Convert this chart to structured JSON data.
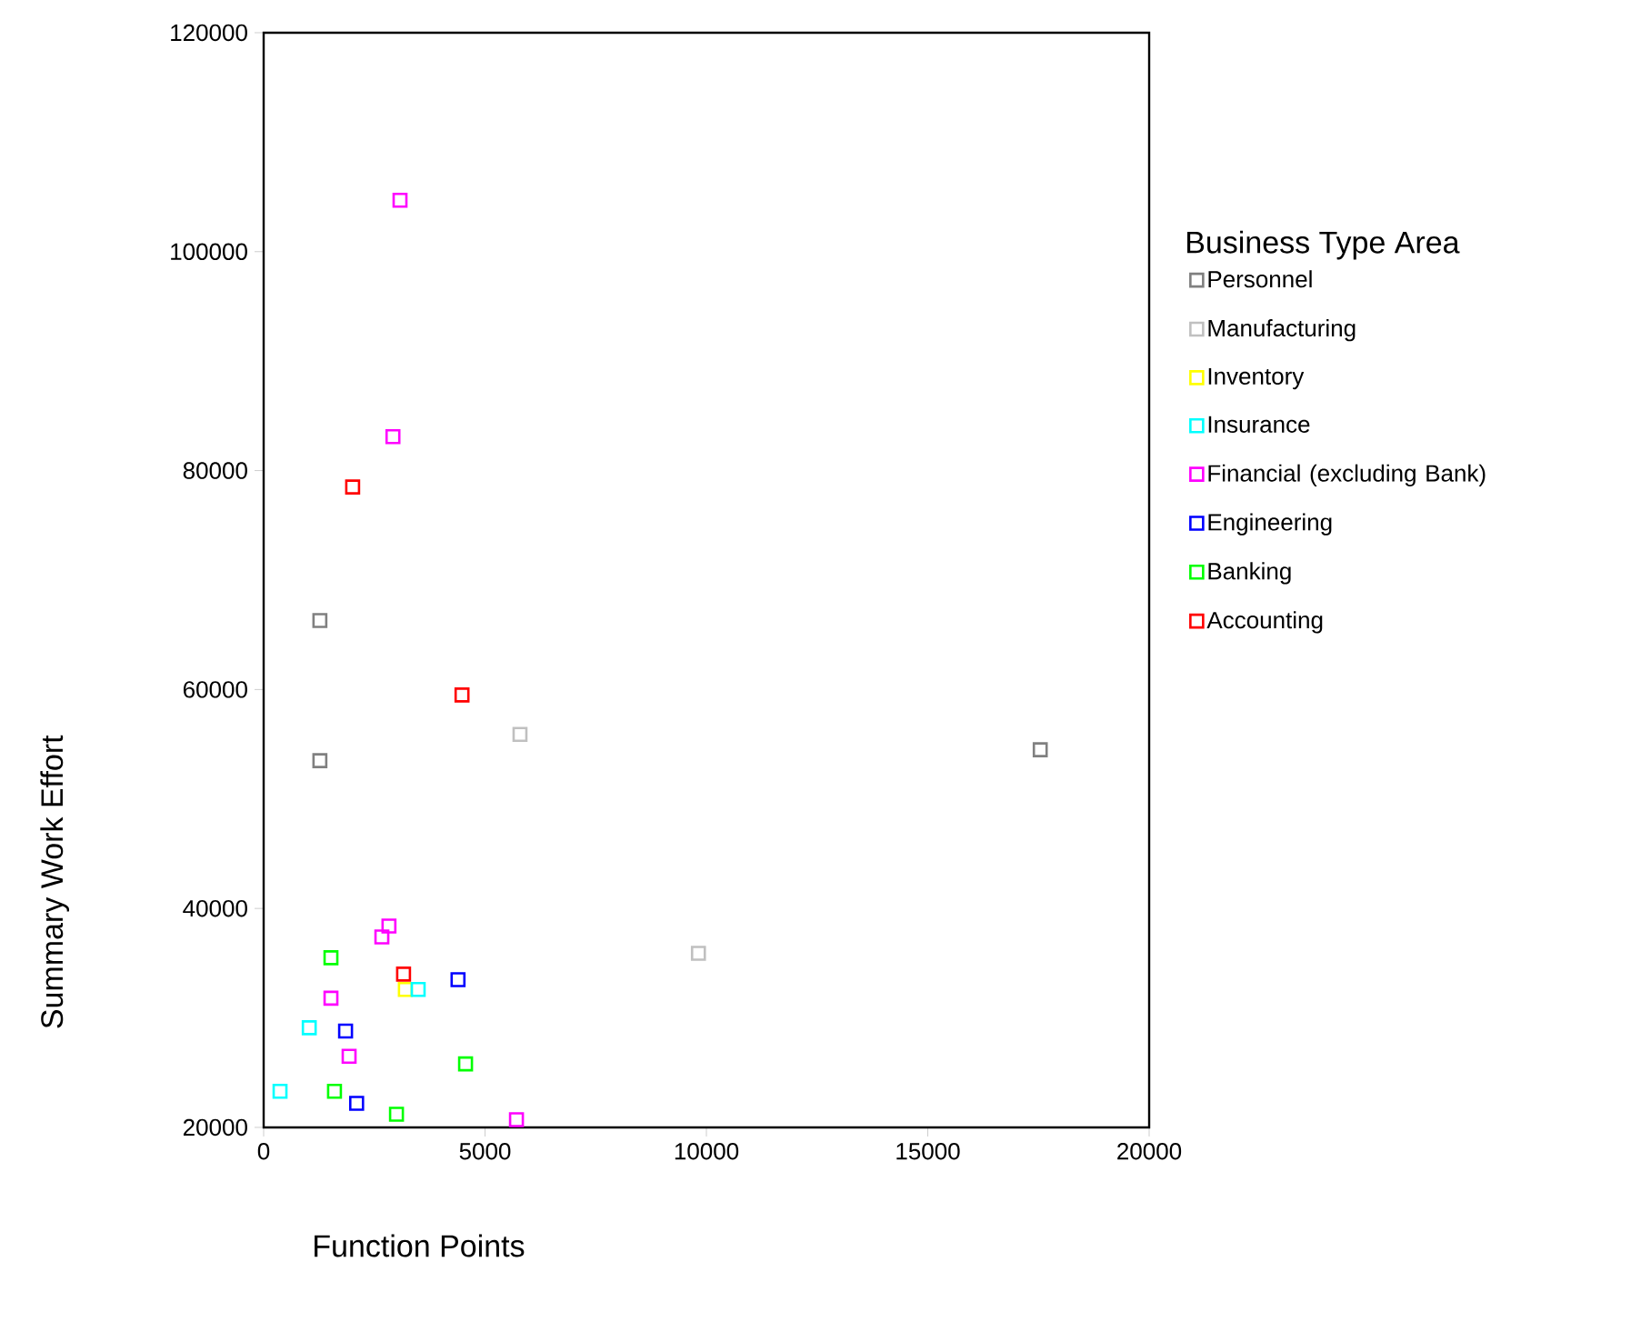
{
  "chart_data": {
    "type": "scatter",
    "xlabel": "Function Points",
    "ylabel": "Summary Work Effort",
    "legend_title": "Business Type Area",
    "legend": "right",
    "marker": "square",
    "grid": false,
    "xlim": [
      0,
      20000
    ],
    "xticks": [
      0,
      5000,
      10000,
      15000,
      20000
    ],
    "ylim": [
      20000,
      120000
    ],
    "yticks": [
      20000,
      40000,
      60000,
      80000,
      100000,
      120000
    ],
    "series": [
      {
        "name": "Personnel",
        "color": "#808080",
        "x": [
          1270,
          1270,
          17540
        ],
        "values": [
          66300,
          53500,
          54500
        ]
      },
      {
        "name": "Manufacturing",
        "color": "#c0c0c0",
        "x": [
          5790,
          9820
        ],
        "values": [
          55900,
          35900
        ]
      },
      {
        "name": "Inventory",
        "color": "#ffff00",
        "x": [
          3200
        ],
        "values": [
          32600
        ]
      },
      {
        "name": "Insurance",
        "color": "#00ffff",
        "x": [
          3490,
          1030,
          370
        ],
        "values": [
          32600,
          29100,
          23300
        ]
      },
      {
        "name": "Financial (excluding Bank)",
        "color": "#ff00ff",
        "x": [
          3080,
          2920,
          2830,
          2670,
          1520,
          1930,
          5710
        ],
        "values": [
          104700,
          83100,
          38400,
          37400,
          31800,
          26500,
          20700
        ]
      },
      {
        "name": "Engineering",
        "color": "#0000ff",
        "x": [
          4390,
          1850,
          2100
        ],
        "values": [
          33500,
          28800,
          22200
        ]
      },
      {
        "name": "Banking",
        "color": "#00ff00",
        "x": [
          1520,
          4560,
          1600,
          3000
        ],
        "values": [
          35500,
          25800,
          23300,
          21200
        ]
      },
      {
        "name": "Accounting",
        "color": "#ff0000",
        "x": [
          2010,
          4480,
          3160
        ],
        "values": [
          78500,
          59500,
          34000
        ]
      }
    ]
  }
}
